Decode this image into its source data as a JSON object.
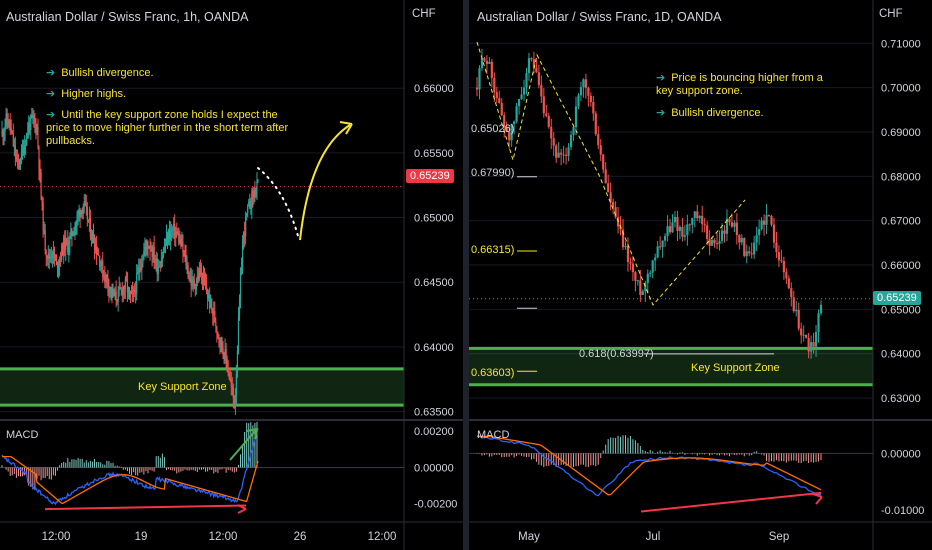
{
  "left": {
    "title": "Australian Dollar / Swiss Franc, 1h, OANDA",
    "currency": "CHF",
    "price_tag": "0.65239",
    "notes": [
      "Bullish divergence.",
      "Higher highs.",
      "Until the key support zone holds I expect the price to move higher further in the short term after pullbacks."
    ],
    "zone_label": "Key Support Zone",
    "macd_label": "MACD"
  },
  "right": {
    "title": "Australian Dollar / Swiss Franc, 1D, OANDA",
    "currency": "CHF",
    "price_tag": "0.65239",
    "notes": [
      "Price is bouncing higher from a key support zone.",
      "Bullish divergence."
    ],
    "zone_label": "Key Support Zone",
    "fib_labels": [
      "0.65026)",
      "0.67990)",
      "0.66315)",
      "0.618(0.63997)",
      "0.63603)"
    ],
    "macd_label": "MACD"
  },
  "chart_data": [
    {
      "type": "candlestick",
      "title": "Australian Dollar / Swiss Franc, 1h, OANDA",
      "ylabel": "CHF",
      "y_ticks": [
        "0.66000",
        "0.65500",
        "0.65000",
        "0.64500",
        "0.64000",
        "0.63500"
      ],
      "y_range": [
        0.6345,
        0.6645
      ],
      "x_ticks": [
        "12:00",
        "19",
        "12:00",
        "26",
        "12:00"
      ],
      "last_price": 0.65239,
      "support_zone": [
        0.6355,
        0.6383
      ],
      "close_path": [
        0.6565,
        0.6575,
        0.6572,
        0.6555,
        0.654,
        0.6548,
        0.656,
        0.6572,
        0.6575,
        0.657,
        0.652,
        0.648,
        0.6468,
        0.6475,
        0.6462,
        0.647,
        0.648,
        0.6478,
        0.6488,
        0.6495,
        0.6505,
        0.651,
        0.65,
        0.6488,
        0.648,
        0.647,
        0.6458,
        0.6452,
        0.6445,
        0.6438,
        0.644,
        0.6445,
        0.6448,
        0.6438,
        0.644,
        0.6455,
        0.6468,
        0.6478,
        0.648,
        0.6472,
        0.6462,
        0.6468,
        0.6478,
        0.6487,
        0.649,
        0.6488,
        0.648,
        0.647,
        0.6458,
        0.6448,
        0.645,
        0.6458,
        0.645,
        0.644,
        0.643,
        0.642,
        0.6408,
        0.6398,
        0.6388,
        0.637,
        0.6355,
        0.642,
        0.648,
        0.65,
        0.6512,
        0.652,
        0.6524
      ],
      "macd_y_ticks": [
        "0.00200",
        "0.00000",
        "-0.00200"
      ],
      "macd_range": [
        -0.0029,
        0.0024
      ]
    },
    {
      "type": "candlestick",
      "title": "Australian Dollar / Swiss Franc, 1D, OANDA",
      "ylabel": "CHF",
      "y_ticks": [
        "0.71000",
        "0.70000",
        "0.69000",
        "0.68000",
        "0.67000",
        "0.66000",
        "0.65000",
        "0.64000",
        "0.63000"
      ],
      "y_range": [
        0.6255,
        0.713
      ],
      "x_ticks": [
        "May",
        "Jul",
        "Sep"
      ],
      "last_price": 0.65239,
      "support_zone": [
        0.633,
        0.6412
      ],
      "fib_levels": [
        0.65026,
        0.6799,
        0.66315,
        0.63997,
        0.63603
      ],
      "close_path": [
        0.7,
        0.708,
        0.704,
        0.698,
        0.692,
        0.689,
        0.695,
        0.701,
        0.706,
        0.702,
        0.695,
        0.689,
        0.685,
        0.683,
        0.688,
        0.695,
        0.701,
        0.698,
        0.69,
        0.682,
        0.675,
        0.67,
        0.665,
        0.661,
        0.656,
        0.654,
        0.659,
        0.663,
        0.666,
        0.668,
        0.67,
        0.667,
        0.669,
        0.671,
        0.669,
        0.666,
        0.664,
        0.667,
        0.67,
        0.669,
        0.665,
        0.661,
        0.664,
        0.67,
        0.671,
        0.666,
        0.66,
        0.656,
        0.65,
        0.645,
        0.642,
        0.641,
        0.6524
      ],
      "macd_y_ticks": [
        "0.00000",
        "-0.01000"
      ],
      "macd_range": [
        -0.0118,
        0.0052
      ]
    }
  ]
}
